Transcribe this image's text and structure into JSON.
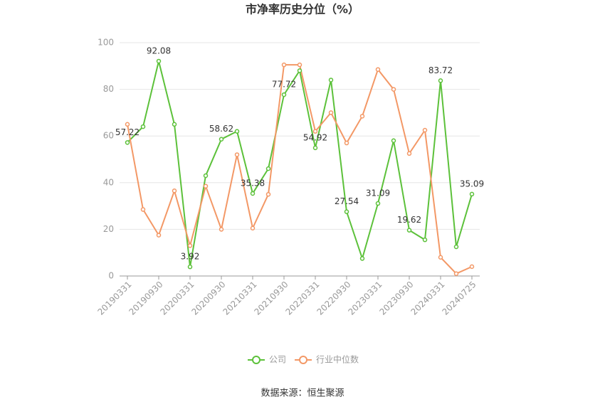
{
  "chart_data": {
    "type": "line",
    "title": "市净率历史分位（%）",
    "source": "数据来源：恒生聚源",
    "categories": [
      "20190331",
      null,
      "20190930",
      null,
      "20200331",
      null,
      "20200930",
      null,
      "20210331",
      null,
      "20210930",
      null,
      "20220331",
      null,
      "20220930",
      null,
      "20230331",
      null,
      "20230930",
      null,
      "20240331",
      null,
      "20240725"
    ],
    "series": [
      {
        "name": "公司",
        "color": "#5cc13a",
        "values": [
          57.22,
          64,
          92.08,
          65,
          3.92,
          43,
          58.62,
          62,
          35.38,
          46,
          77.72,
          88,
          54.92,
          84,
          27.54,
          7.5,
          31.09,
          58,
          19.62,
          15.5,
          83.72,
          12.5,
          35.09
        ],
        "value_labels": [
          "57.22",
          null,
          "92.08",
          null,
          "3.92",
          null,
          "58.62",
          null,
          "35.38",
          null,
          "77.72",
          null,
          "54.92",
          null,
          "27.54",
          null,
          "31.09",
          null,
          "19.62",
          null,
          "83.72",
          null,
          "35.09"
        ]
      },
      {
        "name": "行业中位数",
        "color": "#f39866",
        "values": [
          65,
          28.5,
          17.5,
          36.5,
          13,
          38.5,
          20,
          52,
          20.5,
          35,
          90.5,
          90.5,
          62,
          70,
          57,
          68.5,
          88.5,
          80,
          52.5,
          62.5,
          8,
          1,
          4
        ]
      }
    ],
    "ylim": [
      0,
      100
    ],
    "yticks": [
      0,
      20,
      40,
      60,
      80,
      100
    ],
    "grid": true,
    "legend": "bottom"
  }
}
